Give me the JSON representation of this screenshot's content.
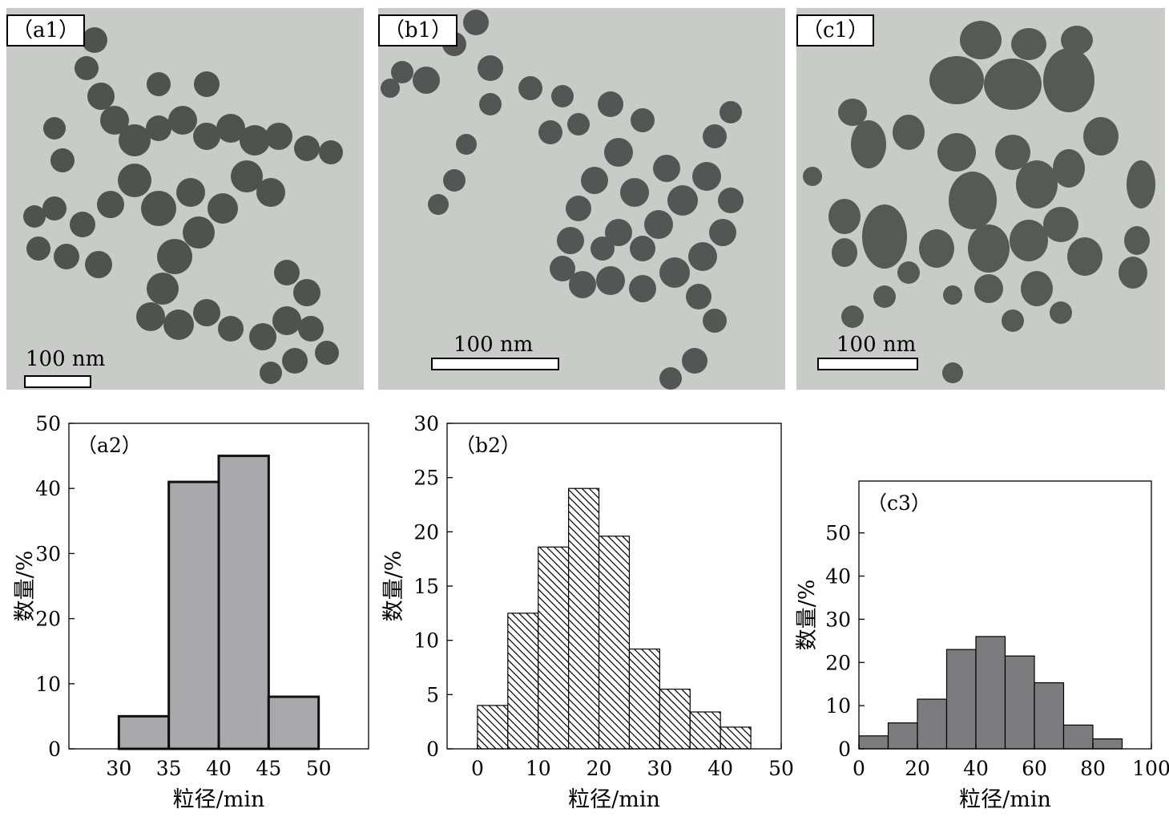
{
  "panels": {
    "a1": {
      "label": "（a1）",
      "scale": "100 nm"
    },
    "b1": {
      "label": "（b1）",
      "scale": "100 nm"
    },
    "c1": {
      "label": "（c1）",
      "scale": "100 nm"
    }
  },
  "chart_data": [
    {
      "id": "a2",
      "type": "bar",
      "panel_label": "（a2）",
      "xlabel": "粒径/min",
      "ylabel": "数量/%",
      "xlim": [
        25,
        55
      ],
      "ylim": [
        0,
        50
      ],
      "xticks": [
        30,
        35,
        40,
        45,
        50
      ],
      "yticks": [
        0,
        10,
        20,
        30,
        40,
        50
      ],
      "bins": [
        [
          30,
          35
        ],
        [
          35,
          40
        ],
        [
          40,
          45
        ],
        [
          45,
          50
        ]
      ],
      "values": [
        5,
        41,
        45,
        8
      ],
      "fill": "#a9a9ab",
      "grid": false
    },
    {
      "id": "b2",
      "type": "bar",
      "panel_label": "（b2）",
      "xlabel": "粒径/min",
      "ylabel": "数量/%",
      "xlim": [
        -5,
        50
      ],
      "ylim": [
        0,
        30
      ],
      "xticks": [
        0,
        10,
        20,
        30,
        40,
        50
      ],
      "yticks": [
        0,
        5,
        10,
        15,
        20,
        25,
        30
      ],
      "bins": [
        [
          0,
          5
        ],
        [
          5,
          10
        ],
        [
          10,
          15
        ],
        [
          15,
          20
        ],
        [
          20,
          25
        ],
        [
          25,
          30
        ],
        [
          30,
          35
        ],
        [
          35,
          40
        ],
        [
          40,
          45
        ]
      ],
      "values": [
        4,
        12.5,
        18.6,
        24,
        19.6,
        9.2,
        5.5,
        3.4,
        2
      ],
      "fill": "hatched",
      "grid": false
    },
    {
      "id": "c3",
      "type": "bar",
      "panel_label": "（c3）",
      "xlabel": "粒径/min",
      "ylabel": "数量/%",
      "xlim": [
        0,
        100
      ],
      "ylim": [
        0,
        62
      ],
      "xticks": [
        0,
        20,
        40,
        60,
        80,
        100
      ],
      "yticks": [
        0,
        10,
        20,
        30,
        40,
        50
      ],
      "bins": [
        [
          0,
          10
        ],
        [
          10,
          20
        ],
        [
          20,
          30
        ],
        [
          30,
          40
        ],
        [
          40,
          50
        ],
        [
          50,
          60
        ],
        [
          60,
          70
        ],
        [
          70,
          80
        ],
        [
          80,
          90
        ]
      ],
      "values": [
        3,
        6,
        11.5,
        23,
        26,
        21.5,
        15.3,
        5.5,
        2.3
      ],
      "fill": "#7c7c7e",
      "grid": false
    }
  ]
}
